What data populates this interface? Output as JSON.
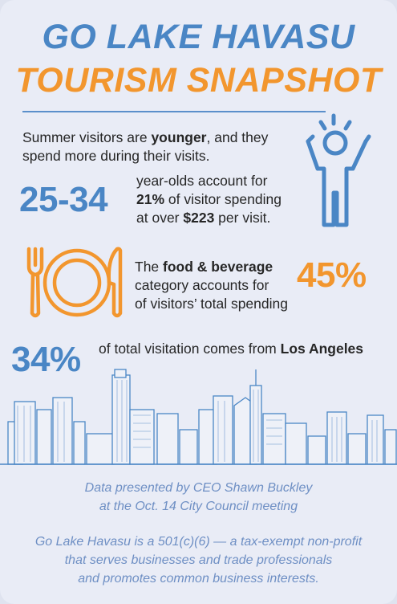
{
  "title": {
    "line1": "GO LAKE HAVASU",
    "line2": "TOURISM SNAPSHOT"
  },
  "section1": {
    "intro_pre": "Summer visitors are ",
    "intro_bold": "younger",
    "intro_post": ", and they",
    "intro_line2": "spend more during their visits.",
    "stat": "25-34",
    "line1": "year-olds account for",
    "line2_bold1": "21%",
    "line2_rest": " of visitor spending",
    "line3_pre": "at over ",
    "line3_bold": "$223",
    "line3_post": " per visit."
  },
  "section2": {
    "line1_pre": "The ",
    "line1_bold": "food & beverage",
    "line2": "category accounts for",
    "line3": "of visitors’ total spending",
    "stat": "45%"
  },
  "section3": {
    "stat": "34%",
    "text_pre": "of total visitation comes from ",
    "text_bold": "Los Angeles"
  },
  "footer": {
    "credit_line1": "Data presented by CEO Shawn Buckley",
    "credit_line2": "at the Oct. 14 City Council meeting",
    "about_line1": "Go Lake Havasu is a 501(c)(6) — a tax-exempt non-profit",
    "about_line2": "that serves businesses and trade professionals",
    "about_line3": "and promotes common business interests."
  },
  "colors": {
    "blue": "#4a86c5",
    "orange": "#f2962e",
    "footer_text": "#6e8fc4"
  },
  "icons": {
    "person": "person-arms-raised-icon",
    "plate": "fork-plate-knife-icon",
    "skyline": "los-angeles-skyline-illustration"
  }
}
